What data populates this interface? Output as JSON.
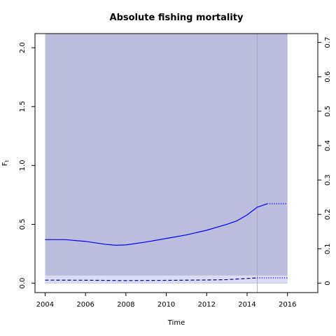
{
  "chart_data": {
    "type": "line",
    "title": "Absolute fishing mortality",
    "xlabel": "Time",
    "ylabel_main": "F",
    "ylabel_sub": "t",
    "xlim": [
      2003.5,
      2017.5
    ],
    "ylim": [
      -0.08,
      2.12
    ],
    "ylim_right": [
      -0.0274,
      0.7257
    ],
    "x_ticks": [
      2004,
      2006,
      2008,
      2010,
      2012,
      2014,
      2016
    ],
    "x_tick_labels": [
      "2004",
      "2006",
      "2008",
      "2010",
      "2012",
      "2014",
      "2016"
    ],
    "y_ticks": [
      0.0,
      0.5,
      1.0,
      1.5,
      2.0
    ],
    "y_tick_labels": [
      "0.0",
      "0.5",
      "1.0",
      "1.5",
      "2.0"
    ],
    "y_right_ticks": [
      0,
      0.1,
      0.2,
      0.3,
      0.4,
      0.5,
      0.6,
      0.7
    ],
    "y_right_tick_labels": [
      "0",
      "0.1",
      "0.2",
      "0.3",
      "0.4",
      "0.5",
      "0.6",
      "0.7"
    ],
    "ci_band": {
      "x": [
        2004,
        2016
      ],
      "lower": 0.0,
      "upper": 2.12,
      "color": "#bcbddc"
    },
    "inner_band": {
      "x": [
        2004,
        2016
      ],
      "lower": 0.0,
      "upper": 0.065,
      "color": "#dcdcf5"
    },
    "vline_x": 2014.5,
    "series": [
      {
        "style": "solid",
        "color": "#0000ff",
        "x": [
          2004,
          2005,
          2006,
          2007,
          2007.5,
          2008,
          2009,
          2010,
          2011,
          2012,
          2013,
          2013.5,
          2014,
          2014.5,
          2015
        ],
        "y": [
          0.37,
          0.37,
          0.355,
          0.33,
          0.322,
          0.325,
          0.35,
          0.38,
          0.41,
          0.45,
          0.5,
          0.53,
          0.58,
          0.645,
          0.675
        ]
      },
      {
        "style": "dotted",
        "color": "#0000ff",
        "x": [
          2015,
          2016
        ],
        "y": [
          0.675,
          0.675
        ]
      },
      {
        "style": "dashed",
        "color": "#00008b",
        "x": [
          2004,
          2006,
          2008,
          2010,
          2012,
          2013,
          2014,
          2014.5
        ],
        "y": [
          0.026,
          0.025,
          0.022,
          0.024,
          0.027,
          0.03,
          0.04,
          0.045
        ]
      },
      {
        "style": "dotted",
        "color": "#0000ff",
        "x": [
          2014.5,
          2016
        ],
        "y": [
          0.045,
          0.045
        ]
      }
    ]
  }
}
